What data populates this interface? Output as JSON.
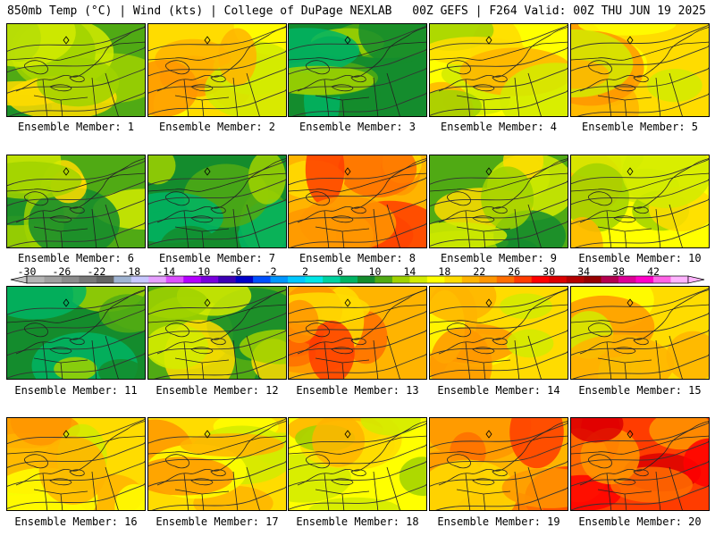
{
  "header": {
    "left": "850mb Temp (°C) | Wind (kts) | College of DuPage NEXLAB",
    "right": "00Z GEFS | F264 Valid: 00Z THU JUN 19 2025"
  },
  "colorbar": {
    "tick_labels": [
      "-30",
      "-26",
      "-22",
      "-18",
      "-14",
      "-10",
      "-6",
      "-2",
      "2",
      "6",
      "10",
      "14",
      "18",
      "22",
      "26",
      "30",
      "34",
      "38",
      "42"
    ],
    "colors": [
      "#b4b4b4",
      "#a0a0a0",
      "#8c8c8c",
      "#787878",
      "#646464",
      "#a0b4d2",
      "#c8c8ff",
      "#e6a0ff",
      "#dc50ff",
      "#b400ff",
      "#7800dc",
      "#3c00b4",
      "#0000c8",
      "#0050ff",
      "#0096ff",
      "#00c8ff",
      "#00e6e6",
      "#00d2a0",
      "#00b464",
      "#148c2d",
      "#50aa14",
      "#a0d200",
      "#d2eb00",
      "#ffff00",
      "#ffdc00",
      "#ffb400",
      "#ff9600",
      "#ff6e00",
      "#ff3c00",
      "#ff0000",
      "#dc0000",
      "#b40000",
      "#960000",
      "#b40050",
      "#dc0096",
      "#ff00c8",
      "#ff64e6",
      "#ffb4ff"
    ]
  },
  "members": [
    {
      "label": "Ensemble Member: 1",
      "mood": "cool"
    },
    {
      "label": "Ensemble Member: 2",
      "mood": "warm"
    },
    {
      "label": "Ensemble Member: 3",
      "mood": "cold"
    },
    {
      "label": "Ensemble Member: 4",
      "mood": "mild"
    },
    {
      "label": "Ensemble Member: 5",
      "mood": "warm"
    },
    {
      "label": "Ensemble Member: 6",
      "mood": "cool"
    },
    {
      "label": "Ensemble Member: 7",
      "mood": "cold"
    },
    {
      "label": "Ensemble Member: 8",
      "mood": "hot"
    },
    {
      "label": "Ensemble Member: 9",
      "mood": "cool"
    },
    {
      "label": "Ensemble Member: 10",
      "mood": "mild"
    },
    {
      "label": "Ensemble Member: 11",
      "mood": "cold"
    },
    {
      "label": "Ensemble Member: 12",
      "mood": "cool"
    },
    {
      "label": "Ensemble Member: 13",
      "mood": "hot"
    },
    {
      "label": "Ensemble Member: 14",
      "mood": "warm"
    },
    {
      "label": "Ensemble Member: 15",
      "mood": "warm"
    },
    {
      "label": "Ensemble Member: 16",
      "mood": "warm"
    },
    {
      "label": "Ensemble Member: 17",
      "mood": "warm"
    },
    {
      "label": "Ensemble Member: 18",
      "mood": "mild"
    },
    {
      "label": "Ensemble Member: 19",
      "mood": "hot"
    },
    {
      "label": "Ensemble Member: 20",
      "mood": "veryhot"
    }
  ]
}
